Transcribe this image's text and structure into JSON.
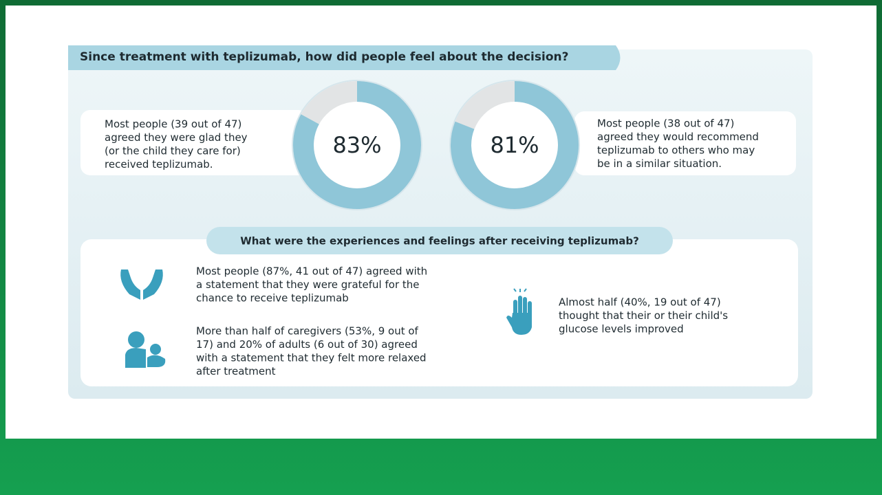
{
  "header": {
    "title": "Since treatment with teplizumab, how did people feel about the decision?"
  },
  "donuts": [
    {
      "value": 83,
      "label": "83%",
      "text": [
        "Most people (39 out of 47)",
        "agreed they were glad they",
        "(or the child they care for)",
        "received teplizumab."
      ]
    },
    {
      "value": 81,
      "label": "81%",
      "text": [
        "Most people (38 out of 47)",
        "agreed they would recommend",
        "teplizumab to others who may",
        "be in a similar situation."
      ]
    }
  ],
  "section": {
    "title": "What were the experiences and feelings after receiving teplizumab?",
    "items": [
      {
        "text": [
          "Most people (87%, 41 out of 47) agreed with",
          "a statement that they were grateful for the",
          "chance to receive teplizumab"
        ]
      },
      {
        "text": [
          "More than half of caregivers (53%, 9 out of",
          "17) and 20% of adults (6 out of 30) agreed",
          "with a statement that they felt more relaxed",
          "after treatment"
        ]
      },
      {
        "text": [
          "Almost half (40%, 19 out of 47)",
          "thought that their or their child's",
          "glucose levels improved"
        ]
      }
    ]
  }
}
